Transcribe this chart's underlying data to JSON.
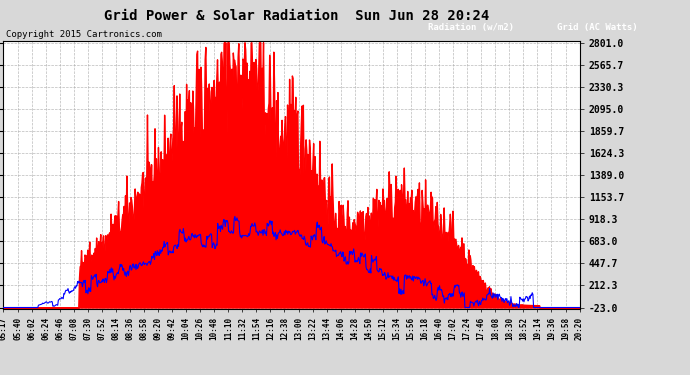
{
  "title": "Grid Power & Solar Radiation  Sun Jun 28 20:24",
  "copyright": "Copyright 2015 Cartronics.com",
  "background_color": "#d8d8d8",
  "plot_bg_color": "#ffffff",
  "grid_color": "#aaaaaa",
  "yticks": [
    2801.0,
    2565.7,
    2330.3,
    2095.0,
    1859.7,
    1624.3,
    1389.0,
    1153.7,
    918.3,
    683.0,
    447.7,
    212.3,
    -23.0
  ],
  "ymin": -23.0,
  "ymax": 2801.0,
  "legend_radiation_label": "Radiation (w/m2)",
  "legend_grid_label": "Grid (AC Watts)",
  "radiation_color": "#0000ff",
  "grid_power_color": "#ff0000",
  "xtick_labels": [
    "05:17",
    "05:40",
    "06:02",
    "06:24",
    "06:46",
    "07:08",
    "07:30",
    "07:52",
    "08:14",
    "08:36",
    "08:58",
    "09:20",
    "09:42",
    "10:04",
    "10:26",
    "10:48",
    "11:10",
    "11:32",
    "11:54",
    "12:16",
    "12:38",
    "13:00",
    "13:22",
    "13:44",
    "14:06",
    "14:28",
    "14:50",
    "15:12",
    "15:34",
    "15:56",
    "16:18",
    "16:40",
    "17:02",
    "17:24",
    "17:46",
    "18:08",
    "18:30",
    "18:52",
    "19:14",
    "19:36",
    "19:58",
    "20:20"
  ],
  "n_points": 840
}
